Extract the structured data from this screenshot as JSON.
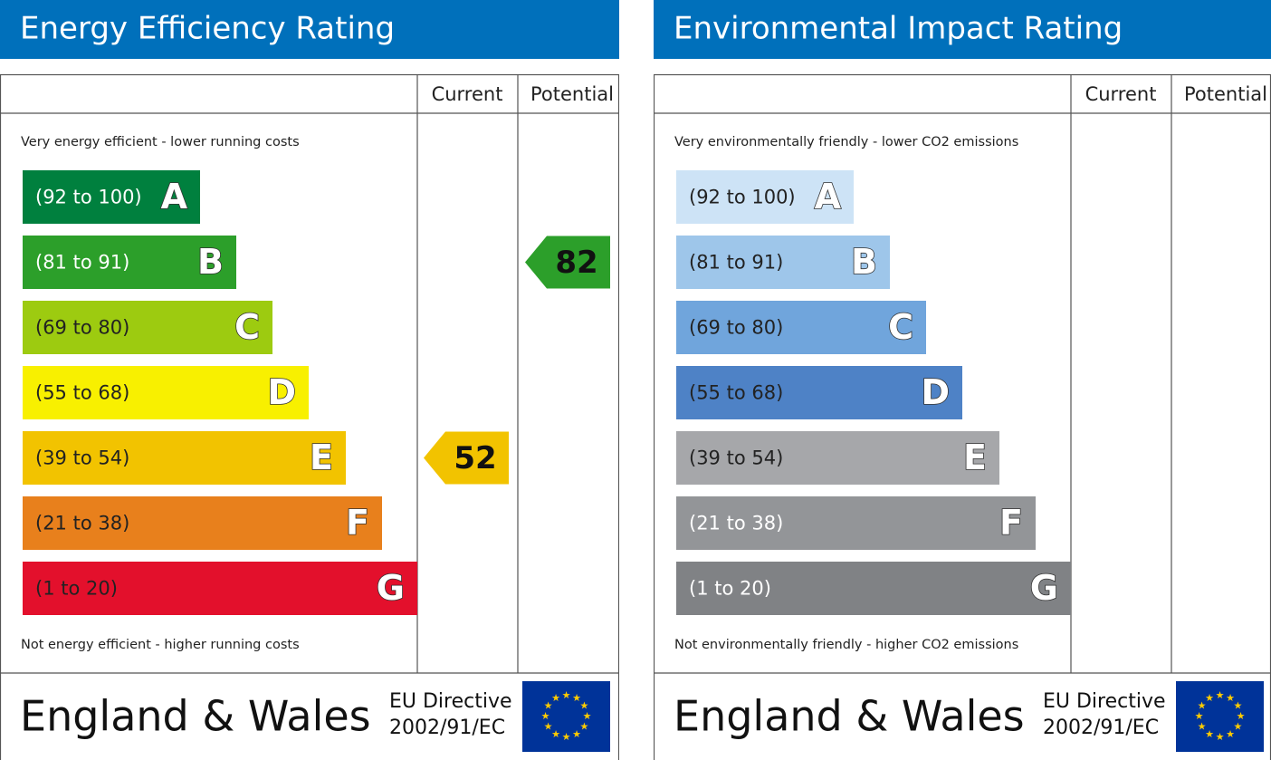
{
  "chart_data": [
    {
      "type": "epc",
      "title": "Energy Efficiency Rating",
      "columns": [
        "Current",
        "Potential"
      ],
      "top_note": "Very energy efficient - lower running costs",
      "bottom_note": "Not energy efficient - higher running costs",
      "bands": [
        {
          "range": "(92 to 100)",
          "letter": "A",
          "color": "#00803e",
          "text_color": "#ffffff"
        },
        {
          "range": "(81 to 91)",
          "letter": "B",
          "color": "#2c9f2a",
          "text_color": "#ffffff"
        },
        {
          "range": "(69 to 80)",
          "letter": "C",
          "color": "#9dcb10",
          "text_color": "#222222"
        },
        {
          "range": "(55 to 68)",
          "letter": "D",
          "color": "#f8f000",
          "text_color": "#222222"
        },
        {
          "range": "(39 to 54)",
          "letter": "E",
          "color": "#f2c300",
          "text_color": "#222222"
        },
        {
          "range": "(21 to 38)",
          "letter": "F",
          "color": "#e8801c",
          "text_color": "#222222"
        },
        {
          "range": "(1 to 20)",
          "letter": "G",
          "color": "#e3102c",
          "text_color": "#222222"
        }
      ],
      "current": {
        "value": 52,
        "color": "#f2c300"
      },
      "potential": {
        "value": 82,
        "color": "#2c9f2a"
      },
      "footer": {
        "region": "England & Wales",
        "directive": "EU Directive",
        "code": "2002/91/EC"
      }
    },
    {
      "type": "epc",
      "title": "Environmental Impact Rating",
      "columns": [
        "Current",
        "Potential"
      ],
      "top_note": "Very environmentally friendly - lower CO2 emissions",
      "bottom_note": "Not environmentally friendly - higher CO2 emissions",
      "bands": [
        {
          "range": "(92 to 100)",
          "letter": "A",
          "color": "#cde3f6",
          "text_color": "#222222"
        },
        {
          "range": "(81 to 91)",
          "letter": "B",
          "color": "#9ec6ea",
          "text_color": "#222222"
        },
        {
          "range": "(69 to 80)",
          "letter": "C",
          "color": "#70a5dc",
          "text_color": "#222222"
        },
        {
          "range": "(55 to 68)",
          "letter": "D",
          "color": "#4e82c6",
          "text_color": "#222222"
        },
        {
          "range": "(39 to 54)",
          "letter": "E",
          "color": "#a6a7aa",
          "text_color": "#222222"
        },
        {
          "range": "(21 to 38)",
          "letter": "F",
          "color": "#939598",
          "text_color": "#ffffff"
        },
        {
          "range": "(1 to 20)",
          "letter": "G",
          "color": "#808285",
          "text_color": "#ffffff"
        }
      ],
      "footer": {
        "region": "England & Wales",
        "directive": "EU Directive",
        "code": "2002/91/EC"
      }
    }
  ]
}
